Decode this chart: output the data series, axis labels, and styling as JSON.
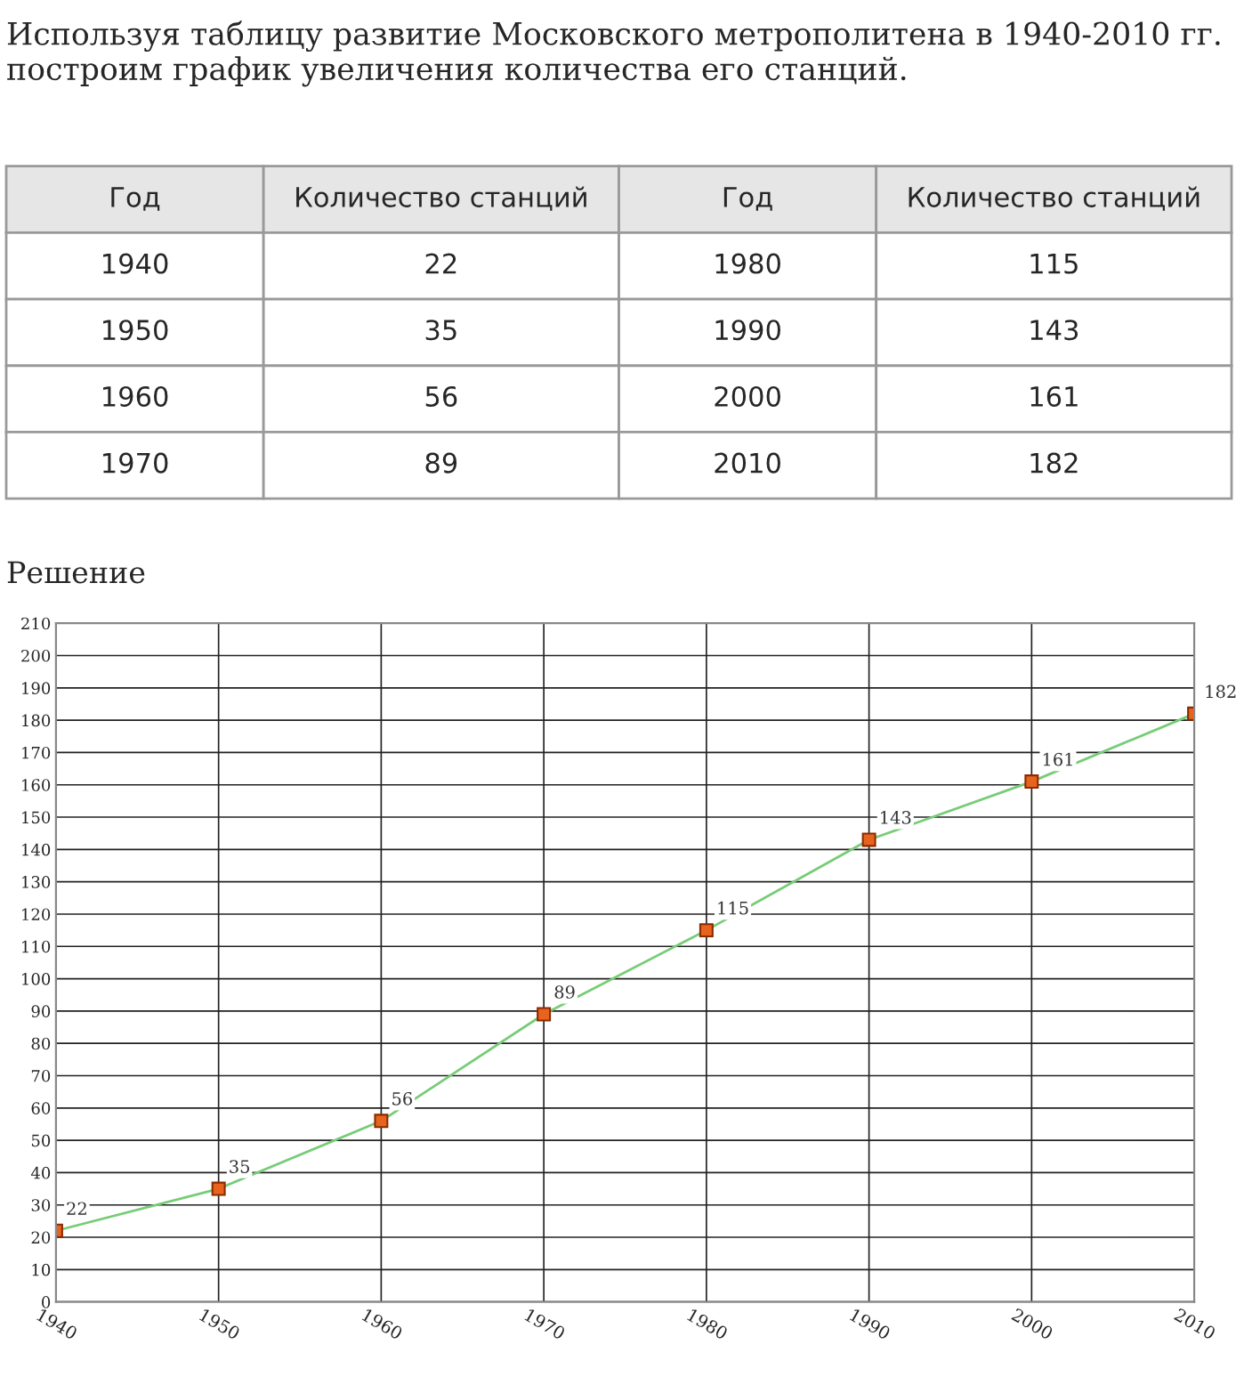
{
  "chart_data": {
    "type": "line",
    "title": "Используя таблицу развитие Московского метрополитена в 1940-2010 гг. построим график увеличения количества его станций.",
    "subtitle": "Решение",
    "annotations": [
      "Год",
      "Количество станций",
      "Год",
      "Количество станций",
      "1940",
      "22",
      "1980",
      "115",
      "1950",
      "35",
      "1990",
      "143",
      "1960",
      "56",
      "2000",
      "161",
      "1970",
      "89",
      "2010",
      "182"
    ],
    "x": [
      1940,
      1950,
      1960,
      1970,
      1980,
      1990,
      2000,
      2010
    ],
    "series": [
      {
        "color": "#77cc77",
        "values": [
          22,
          35,
          56,
          89,
          115,
          143,
          161,
          182
        ]
      }
    ],
    "marker": "square",
    "line_style": "solid",
    "data_labels": true,
    "grid": true,
    "legend": false,
    "xlim": [
      1940,
      2010
    ],
    "xticks": [
      1940,
      1950,
      1960,
      1970,
      1980,
      1990,
      2000,
      2010
    ],
    "ylim": [
      0,
      210
    ],
    "yticks": [
      0,
      10,
      20,
      30,
      40,
      50,
      60,
      70,
      80,
      90,
      100,
      110,
      120,
      130,
      140,
      150,
      160,
      170,
      180,
      190,
      200,
      210
    ]
  }
}
